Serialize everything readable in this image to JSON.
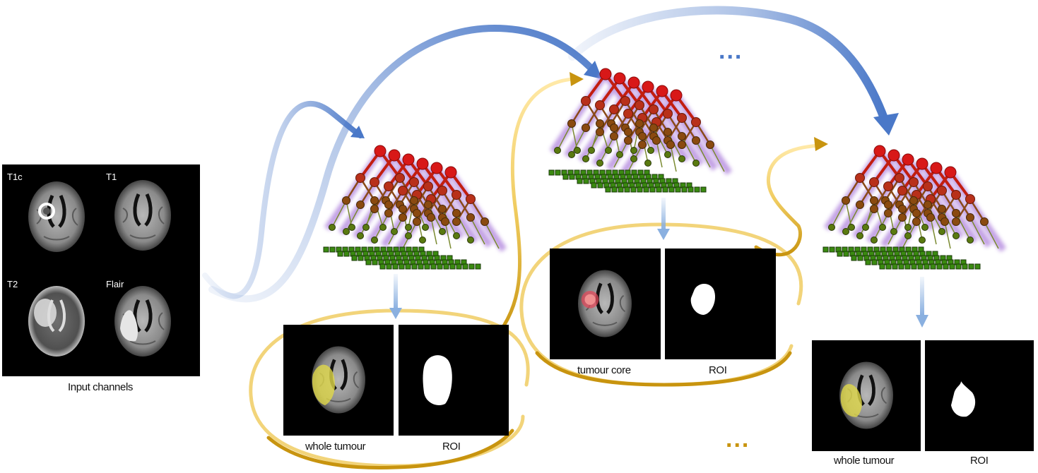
{
  "input_panel": {
    "channels": [
      "T1c",
      "T1",
      "T2",
      "Flair"
    ],
    "caption": "Input channels"
  },
  "stages": [
    {
      "label_segmentation": "whole tumour",
      "label_roi": "ROI",
      "overlay_color": "#e0d84a"
    },
    {
      "label_segmentation": "tumour core",
      "label_roi": "ROI",
      "overlay_color": "#e0485a"
    },
    {
      "label_segmentation": "whole tumour",
      "label_roi": "ROI",
      "overlay_color": "#e0d84a"
    }
  ],
  "ellipsis": {
    "top": "...",
    "bottom": "..."
  },
  "colors": {
    "blue_arrow": "#4a78c8",
    "gold_arrow": "#c8940f",
    "node_root": "#d81818",
    "node_mid": "#9a4a10",
    "node_low": "#6a7a10",
    "leaf": "#3a8a10",
    "halo": "#b890e0"
  },
  "icons": [
    "forest-tree-icon",
    "down-arrow-icon"
  ]
}
